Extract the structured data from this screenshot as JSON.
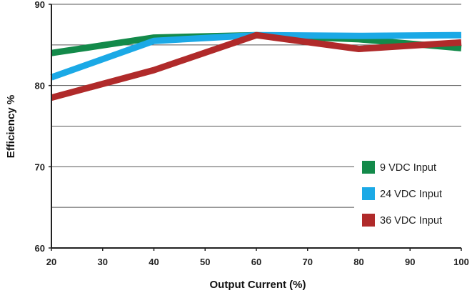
{
  "chart_data": {
    "type": "line",
    "xlabel": "Output Current (%)",
    "ylabel": "Efficiency %",
    "xlim": [
      20,
      100
    ],
    "ylim": [
      60,
      90
    ],
    "x_ticks": [
      "20",
      "30",
      "40",
      "50",
      "60",
      "70",
      "80",
      "90",
      "100"
    ],
    "y_ticks": [
      "60",
      "70",
      "80",
      "90"
    ],
    "grid": true,
    "legend_position": "lower-right",
    "x": [
      20,
      40,
      60,
      80,
      100
    ],
    "series": [
      {
        "name": "9 VDC Input",
        "color": "#138a4a",
        "values": [
          84.0,
          85.9,
          86.2,
          85.7,
          84.6
        ]
      },
      {
        "name": "24 VDC Input",
        "color": "#1ba9e6",
        "values": [
          81.0,
          85.5,
          86.2,
          86.1,
          86.2
        ]
      },
      {
        "name": "36 VDC Input",
        "color": "#b02a2a",
        "values": [
          78.5,
          81.9,
          86.2,
          84.5,
          85.3
        ]
      }
    ]
  }
}
